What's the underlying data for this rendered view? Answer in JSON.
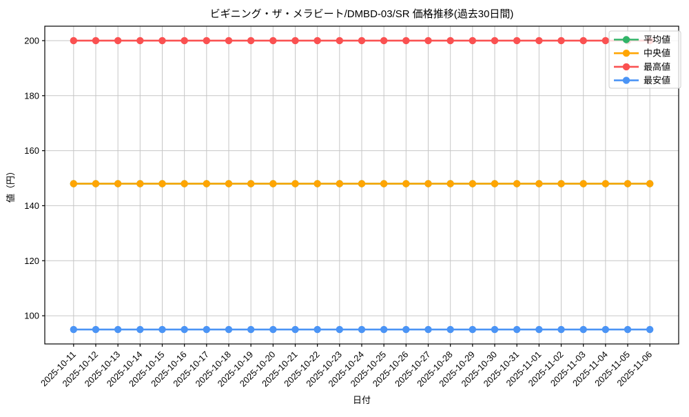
{
  "figure": {
    "title": "ビギニング・ザ・メラビート/DMBD-03/SR 価格推移(過去30日間)",
    "xlabel": "日付",
    "ylabel": "値（円）"
  },
  "chart_data": {
    "type": "line",
    "title": "ビギニング・ザ・メラビート/DMBD-03/SR 価格推移(過去30日間)",
    "xlabel": "日付",
    "ylabel": "値（円）",
    "x": [
      "2025-10-11",
      "2025-10-12",
      "2025-10-13",
      "2025-10-14",
      "2025-10-15",
      "2025-10-16",
      "2025-10-17",
      "2025-10-18",
      "2025-10-19",
      "2025-10-20",
      "2025-10-21",
      "2025-10-22",
      "2025-10-23",
      "2025-10-24",
      "2025-10-25",
      "2025-10-26",
      "2025-10-27",
      "2025-10-28",
      "2025-10-29",
      "2025-10-30",
      "2025-10-31",
      "2025-11-01",
      "2025-11-02",
      "2025-11-03",
      "2025-11-04",
      "2025-11-05",
      "2025-11-06"
    ],
    "series": [
      {
        "name": "平均値",
        "color": "#31b468",
        "values": [
          148,
          148,
          148,
          148,
          148,
          148,
          148,
          148,
          148,
          148,
          148,
          148,
          148,
          148,
          148,
          148,
          148,
          148,
          148,
          148,
          148,
          148,
          148,
          148,
          148,
          148,
          148
        ]
      },
      {
        "name": "中央値",
        "color": "#ffa502",
        "values": [
          148,
          148,
          148,
          148,
          148,
          148,
          148,
          148,
          148,
          148,
          148,
          148,
          148,
          148,
          148,
          148,
          148,
          148,
          148,
          148,
          148,
          148,
          148,
          148,
          148,
          148,
          148
        ]
      },
      {
        "name": "最高値",
        "color": "#fa5151",
        "values": [
          200,
          200,
          200,
          200,
          200,
          200,
          200,
          200,
          200,
          200,
          200,
          200,
          200,
          200,
          200,
          200,
          200,
          200,
          200,
          200,
          200,
          200,
          200,
          200,
          200,
          200,
          200
        ]
      },
      {
        "name": "最安値",
        "color": "#4b94f5",
        "values": [
          95,
          95,
          95,
          95,
          95,
          95,
          95,
          95,
          95,
          95,
          95,
          95,
          95,
          95,
          95,
          95,
          95,
          95,
          95,
          95,
          95,
          95,
          95,
          95,
          95,
          95,
          95
        ]
      }
    ],
    "ylim": [
      89.75,
      205.25
    ],
    "yticks": [
      100,
      120,
      140,
      160,
      180,
      200
    ],
    "grid": true,
    "legend_position": "upper right",
    "x_tick_rotation": 45
  },
  "colors": {
    "grid": "#c6c6c6",
    "axis": "#000000",
    "legend_border": "#cccccc",
    "background": "#ffffff"
  }
}
